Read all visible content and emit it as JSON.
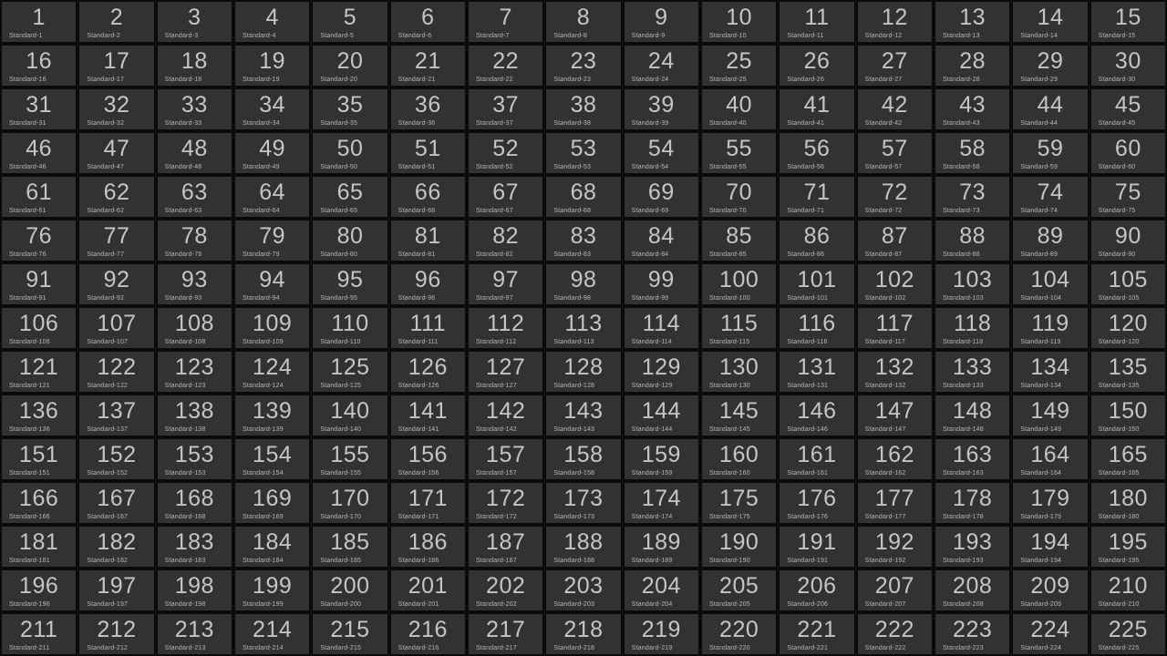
{
  "grid": {
    "columns": 15,
    "rows": 15,
    "tile_count": 225
  },
  "colors": {
    "gap_bg": "#0a0a0a",
    "tile_bg": "#323232",
    "number_color": "#c5c5c5",
    "label_color": "#b8b8b8"
  },
  "tiles": [
    {
      "num": "1",
      "label": "Standard-1"
    },
    {
      "num": "2",
      "label": "Standard-2"
    },
    {
      "num": "3",
      "label": "Standard-3"
    },
    {
      "num": "4",
      "label": "Standard-4"
    },
    {
      "num": "5",
      "label": "Standard-5"
    },
    {
      "num": "6",
      "label": "Standard-6"
    },
    {
      "num": "7",
      "label": "Standard-7"
    },
    {
      "num": "8",
      "label": "Standard-8"
    },
    {
      "num": "9",
      "label": "Standard-9"
    },
    {
      "num": "10",
      "label": "Standard-10"
    },
    {
      "num": "11",
      "label": "Standard-11"
    },
    {
      "num": "12",
      "label": "Standard-12"
    },
    {
      "num": "13",
      "label": "Standard-13"
    },
    {
      "num": "14",
      "label": "Standard-14"
    },
    {
      "num": "15",
      "label": "Standard-15"
    },
    {
      "num": "16",
      "label": "Standard-16"
    },
    {
      "num": "17",
      "label": "Standard-17"
    },
    {
      "num": "18",
      "label": "Standard-18"
    },
    {
      "num": "19",
      "label": "Standard-19"
    },
    {
      "num": "20",
      "label": "Standard-20"
    },
    {
      "num": "21",
      "label": "Standard-21"
    },
    {
      "num": "22",
      "label": "Standard-22"
    },
    {
      "num": "23",
      "label": "Standard-23"
    },
    {
      "num": "24",
      "label": "Standard-24"
    },
    {
      "num": "25",
      "label": "Standard-25"
    },
    {
      "num": "26",
      "label": "Standard-26"
    },
    {
      "num": "27",
      "label": "Standard-27"
    },
    {
      "num": "28",
      "label": "Standard-28"
    },
    {
      "num": "29",
      "label": "Standard-29"
    },
    {
      "num": "30",
      "label": "Standard-30"
    },
    {
      "num": "31",
      "label": "Standard-31"
    },
    {
      "num": "32",
      "label": "Standard-32"
    },
    {
      "num": "33",
      "label": "Standard-33"
    },
    {
      "num": "34",
      "label": "Standard-34"
    },
    {
      "num": "35",
      "label": "Standard-35"
    },
    {
      "num": "36",
      "label": "Standard-36"
    },
    {
      "num": "37",
      "label": "Standard-37"
    },
    {
      "num": "38",
      "label": "Standard-38"
    },
    {
      "num": "39",
      "label": "Standard-39"
    },
    {
      "num": "40",
      "label": "Standard-40"
    },
    {
      "num": "41",
      "label": "Standard-41"
    },
    {
      "num": "42",
      "label": "Standard-42"
    },
    {
      "num": "43",
      "label": "Standard-43"
    },
    {
      "num": "44",
      "label": "Standard-44"
    },
    {
      "num": "45",
      "label": "Standard-45"
    },
    {
      "num": "46",
      "label": "Standard-46"
    },
    {
      "num": "47",
      "label": "Standard-47"
    },
    {
      "num": "48",
      "label": "Standard-48"
    },
    {
      "num": "49",
      "label": "Standard-49"
    },
    {
      "num": "50",
      "label": "Standard-50"
    },
    {
      "num": "51",
      "label": "Standard-51"
    },
    {
      "num": "52",
      "label": "Standard-52"
    },
    {
      "num": "53",
      "label": "Standard-53"
    },
    {
      "num": "54",
      "label": "Standard-54"
    },
    {
      "num": "55",
      "label": "Standard-55"
    },
    {
      "num": "56",
      "label": "Standard-56"
    },
    {
      "num": "57",
      "label": "Standard-57"
    },
    {
      "num": "58",
      "label": "Standard-58"
    },
    {
      "num": "59",
      "label": "Standard-59"
    },
    {
      "num": "60",
      "label": "Standard-60"
    },
    {
      "num": "61",
      "label": "Standard-61"
    },
    {
      "num": "62",
      "label": "Standard-62"
    },
    {
      "num": "63",
      "label": "Standard-63"
    },
    {
      "num": "64",
      "label": "Standard-64"
    },
    {
      "num": "65",
      "label": "Standard-65"
    },
    {
      "num": "66",
      "label": "Standard-66"
    },
    {
      "num": "67",
      "label": "Standard-67"
    },
    {
      "num": "68",
      "label": "Standard-68"
    },
    {
      "num": "69",
      "label": "Standard-69"
    },
    {
      "num": "70",
      "label": "Standard-70"
    },
    {
      "num": "71",
      "label": "Standard-71"
    },
    {
      "num": "72",
      "label": "Standard-72"
    },
    {
      "num": "73",
      "label": "Standard-73"
    },
    {
      "num": "74",
      "label": "Standard-74"
    },
    {
      "num": "75",
      "label": "Standard-75"
    },
    {
      "num": "76",
      "label": "Standard-76"
    },
    {
      "num": "77",
      "label": "Standard-77"
    },
    {
      "num": "78",
      "label": "Standard-78"
    },
    {
      "num": "79",
      "label": "Standard-79"
    },
    {
      "num": "80",
      "label": "Standard-80"
    },
    {
      "num": "81",
      "label": "Standard-81"
    },
    {
      "num": "82",
      "label": "Standard-82"
    },
    {
      "num": "83",
      "label": "Standard-83"
    },
    {
      "num": "84",
      "label": "Standard-84"
    },
    {
      "num": "85",
      "label": "Standard-85"
    },
    {
      "num": "86",
      "label": "Standard-86"
    },
    {
      "num": "87",
      "label": "Standard-87"
    },
    {
      "num": "88",
      "label": "Standard-88"
    },
    {
      "num": "89",
      "label": "Standard-89"
    },
    {
      "num": "90",
      "label": "Standard-90"
    },
    {
      "num": "91",
      "label": "Standard-91"
    },
    {
      "num": "92",
      "label": "Standard-92"
    },
    {
      "num": "93",
      "label": "Standard-93"
    },
    {
      "num": "94",
      "label": "Standard-94"
    },
    {
      "num": "95",
      "label": "Standard-95"
    },
    {
      "num": "96",
      "label": "Standard-96"
    },
    {
      "num": "97",
      "label": "Standard-97"
    },
    {
      "num": "98",
      "label": "Standard-98"
    },
    {
      "num": "99",
      "label": "Standard-99"
    },
    {
      "num": "100",
      "label": "Standard-100"
    },
    {
      "num": "101",
      "label": "Standard-101"
    },
    {
      "num": "102",
      "label": "Standard-102"
    },
    {
      "num": "103",
      "label": "Standard-103"
    },
    {
      "num": "104",
      "label": "Standard-104"
    },
    {
      "num": "105",
      "label": "Standard-105"
    },
    {
      "num": "106",
      "label": "Standard-106"
    },
    {
      "num": "107",
      "label": "Standard-107"
    },
    {
      "num": "108",
      "label": "Standard-108"
    },
    {
      "num": "109",
      "label": "Standard-109"
    },
    {
      "num": "110",
      "label": "Standard-110"
    },
    {
      "num": "111",
      "label": "Standard-111"
    },
    {
      "num": "112",
      "label": "Standard-112"
    },
    {
      "num": "113",
      "label": "Standard-113"
    },
    {
      "num": "114",
      "label": "Standard-114"
    },
    {
      "num": "115",
      "label": "Standard-115"
    },
    {
      "num": "116",
      "label": "Standard-116"
    },
    {
      "num": "117",
      "label": "Standard-117"
    },
    {
      "num": "118",
      "label": "Standard-118"
    },
    {
      "num": "119",
      "label": "Standard-119"
    },
    {
      "num": "120",
      "label": "Standard-120"
    },
    {
      "num": "121",
      "label": "Standard-121"
    },
    {
      "num": "122",
      "label": "Standard-122"
    },
    {
      "num": "123",
      "label": "Standard-123"
    },
    {
      "num": "124",
      "label": "Standard-124"
    },
    {
      "num": "125",
      "label": "Standard-125"
    },
    {
      "num": "126",
      "label": "Standard-126"
    },
    {
      "num": "127",
      "label": "Standard-127"
    },
    {
      "num": "128",
      "label": "Standard-128"
    },
    {
      "num": "129",
      "label": "Standard-129"
    },
    {
      "num": "130",
      "label": "Standard-130"
    },
    {
      "num": "131",
      "label": "Standard-131"
    },
    {
      "num": "132",
      "label": "Standard-132"
    },
    {
      "num": "133",
      "label": "Standard-133"
    },
    {
      "num": "134",
      "label": "Standard-134"
    },
    {
      "num": "135",
      "label": "Standard-135"
    },
    {
      "num": "136",
      "label": "Standard-136"
    },
    {
      "num": "137",
      "label": "Standard-137"
    },
    {
      "num": "138",
      "label": "Standard-138"
    },
    {
      "num": "139",
      "label": "Standard-139"
    },
    {
      "num": "140",
      "label": "Standard-140"
    },
    {
      "num": "141",
      "label": "Standard-141"
    },
    {
      "num": "142",
      "label": "Standard-142"
    },
    {
      "num": "143",
      "label": "Standard-143"
    },
    {
      "num": "144",
      "label": "Standard-144"
    },
    {
      "num": "145",
      "label": "Standard-145"
    },
    {
      "num": "146",
      "label": "Standard-146"
    },
    {
      "num": "147",
      "label": "Standard-147"
    },
    {
      "num": "148",
      "label": "Standard-148"
    },
    {
      "num": "149",
      "label": "Standard-149"
    },
    {
      "num": "150",
      "label": "Standard-150"
    },
    {
      "num": "151",
      "label": "Standard-151"
    },
    {
      "num": "152",
      "label": "Standard-152"
    },
    {
      "num": "153",
      "label": "Standard-153"
    },
    {
      "num": "154",
      "label": "Standard-154"
    },
    {
      "num": "155",
      "label": "Standard-155"
    },
    {
      "num": "156",
      "label": "Standard-156"
    },
    {
      "num": "157",
      "label": "Standard-157"
    },
    {
      "num": "158",
      "label": "Standard-158"
    },
    {
      "num": "159",
      "label": "Standard-159"
    },
    {
      "num": "160",
      "label": "Standard-160"
    },
    {
      "num": "161",
      "label": "Standard-161"
    },
    {
      "num": "162",
      "label": "Standard-162"
    },
    {
      "num": "163",
      "label": "Standard-163"
    },
    {
      "num": "164",
      "label": "Standard-164"
    },
    {
      "num": "165",
      "label": "Standard-165"
    },
    {
      "num": "166",
      "label": "Standard-166"
    },
    {
      "num": "167",
      "label": "Standard-167"
    },
    {
      "num": "168",
      "label": "Standard-168"
    },
    {
      "num": "169",
      "label": "Standard-169"
    },
    {
      "num": "170",
      "label": "Standard-170"
    },
    {
      "num": "171",
      "label": "Standard-171"
    },
    {
      "num": "172",
      "label": "Standard-172"
    },
    {
      "num": "173",
      "label": "Standard-173"
    },
    {
      "num": "174",
      "label": "Standard-174"
    },
    {
      "num": "175",
      "label": "Standard-175"
    },
    {
      "num": "176",
      "label": "Standard-176"
    },
    {
      "num": "177",
      "label": "Standard-177"
    },
    {
      "num": "178",
      "label": "Standard-178"
    },
    {
      "num": "179",
      "label": "Standard-179"
    },
    {
      "num": "180",
      "label": "Standard-180"
    },
    {
      "num": "181",
      "label": "Standard-181"
    },
    {
      "num": "182",
      "label": "Standard-182"
    },
    {
      "num": "183",
      "label": "Standard-183"
    },
    {
      "num": "184",
      "label": "Standard-184"
    },
    {
      "num": "185",
      "label": "Standard-185"
    },
    {
      "num": "186",
      "label": "Standard-186"
    },
    {
      "num": "187",
      "label": "Standard-187"
    },
    {
      "num": "188",
      "label": "Standard-188"
    },
    {
      "num": "189",
      "label": "Standard-189"
    },
    {
      "num": "190",
      "label": "Standard-190"
    },
    {
      "num": "191",
      "label": "Standard-191"
    },
    {
      "num": "192",
      "label": "Standard-192"
    },
    {
      "num": "193",
      "label": "Standard-193"
    },
    {
      "num": "194",
      "label": "Standard-194"
    },
    {
      "num": "195",
      "label": "Standard-195"
    },
    {
      "num": "196",
      "label": "Standard-196"
    },
    {
      "num": "197",
      "label": "Standard-197"
    },
    {
      "num": "198",
      "label": "Standard-198"
    },
    {
      "num": "199",
      "label": "Standard-199"
    },
    {
      "num": "200",
      "label": "Standard-200"
    },
    {
      "num": "201",
      "label": "Standard-201"
    },
    {
      "num": "202",
      "label": "Standard-202"
    },
    {
      "num": "203",
      "label": "Standard-203"
    },
    {
      "num": "204",
      "label": "Standard-204"
    },
    {
      "num": "205",
      "label": "Standard-205"
    },
    {
      "num": "206",
      "label": "Standard-206"
    },
    {
      "num": "207",
      "label": "Standard-207"
    },
    {
      "num": "208",
      "label": "Standard-208"
    },
    {
      "num": "209",
      "label": "Standard-209"
    },
    {
      "num": "210",
      "label": "Standard-210"
    },
    {
      "num": "211",
      "label": "Standard-211"
    },
    {
      "num": "212",
      "label": "Standard-212"
    },
    {
      "num": "213",
      "label": "Standard-213"
    },
    {
      "num": "214",
      "label": "Standard-214"
    },
    {
      "num": "215",
      "label": "Standard-215"
    },
    {
      "num": "216",
      "label": "Standard-216"
    },
    {
      "num": "217",
      "label": "Standard-217"
    },
    {
      "num": "218",
      "label": "Standard-218"
    },
    {
      "num": "219",
      "label": "Standard-219"
    },
    {
      "num": "220",
      "label": "Standard-220"
    },
    {
      "num": "221",
      "label": "Standard-221"
    },
    {
      "num": "222",
      "label": "Standard-222"
    },
    {
      "num": "223",
      "label": "Standard-223"
    },
    {
      "num": "224",
      "label": "Standard-224"
    },
    {
      "num": "225",
      "label": "Standard-225"
    }
  ]
}
